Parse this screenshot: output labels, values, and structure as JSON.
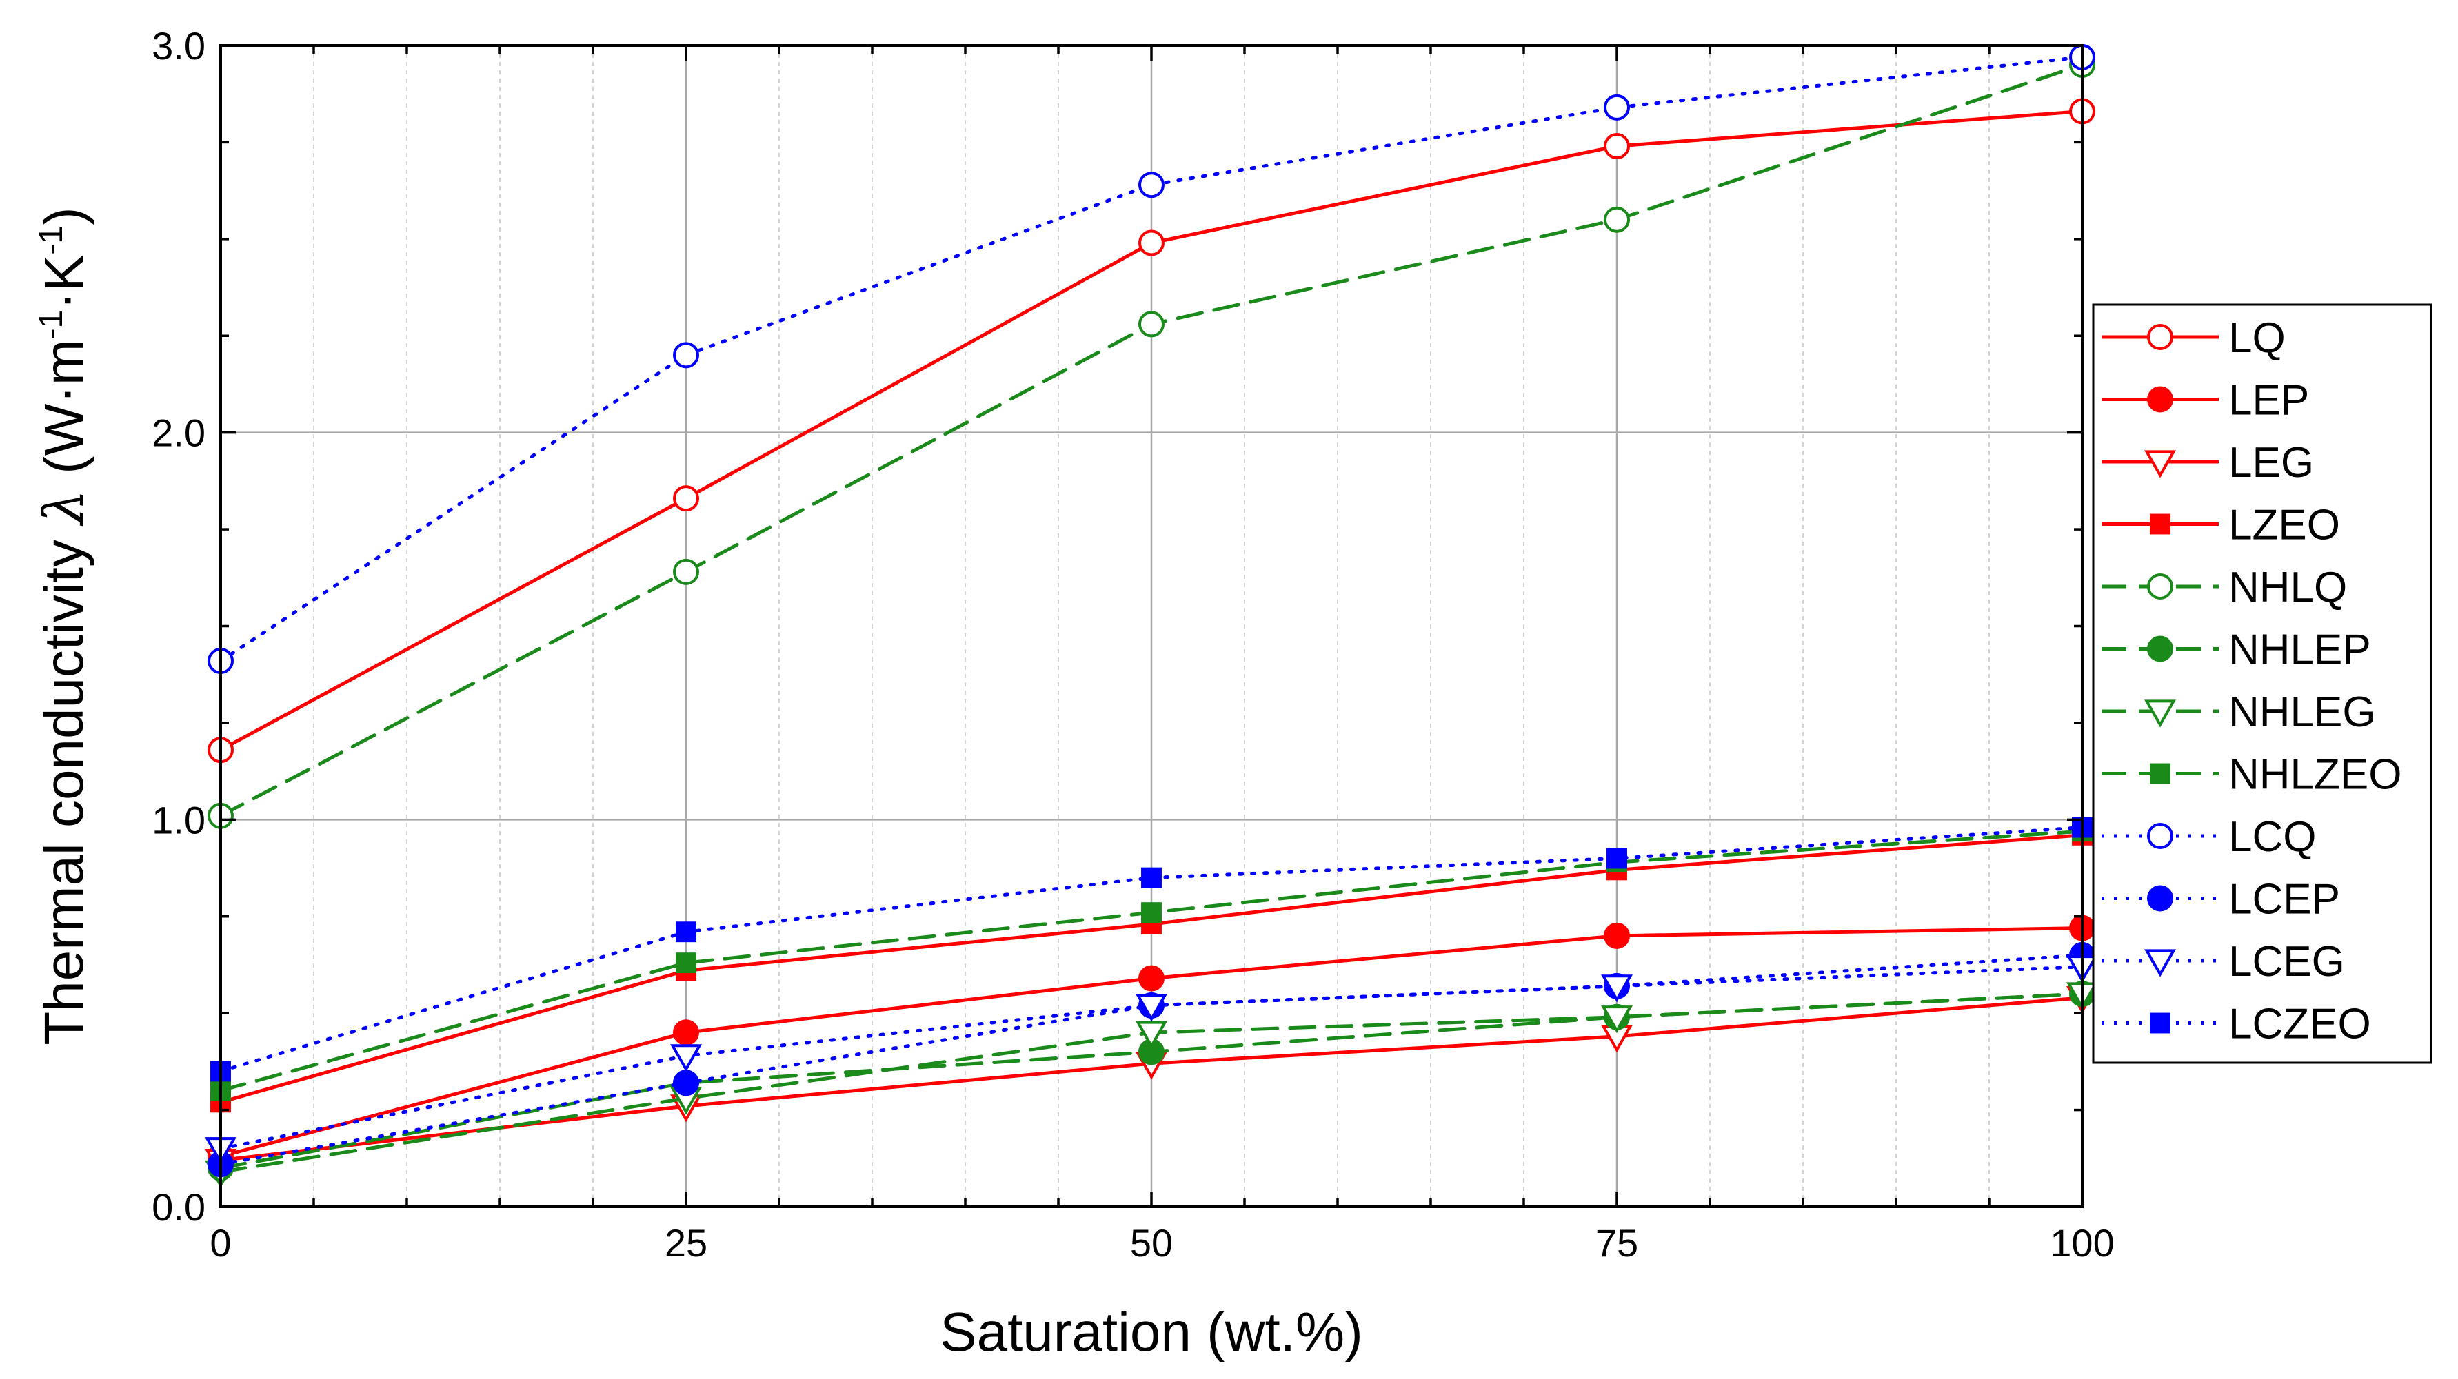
{
  "chart_data": {
    "type": "line",
    "title": "",
    "xlabel": "Saturation (wt.%)",
    "ylabel": {
      "main": "Thermal conductivity ",
      "symbol": "λ",
      "unit_open": " (W·m",
      "exp1": "-1",
      "unit_mid": "·K",
      "exp2": "-1",
      "unit_close": ")"
    },
    "xlim": [
      0,
      100
    ],
    "ylim": [
      0,
      3
    ],
    "x_ticks": [
      0,
      25,
      50,
      75,
      100
    ],
    "x_tick_labels": [
      "0",
      "25",
      "50",
      "75",
      "100"
    ],
    "y_ticks": [
      0,
      1,
      2,
      3
    ],
    "y_tick_labels": [
      "0.0",
      "1.0",
      "2.0",
      "3.0"
    ],
    "x_minor_step": 5,
    "y_minor_step": 0.25,
    "grid": true,
    "legend_position": "right",
    "x": [
      0,
      25,
      50,
      75,
      100
    ],
    "series": [
      {
        "name": "LQ",
        "values": [
          1.18,
          1.83,
          2.49,
          2.74,
          2.83
        ],
        "color": "#ff0000",
        "dash": "solid",
        "marker": "circle-open"
      },
      {
        "name": "LEP",
        "values": [
          0.13,
          0.45,
          0.59,
          0.7,
          0.72
        ],
        "color": "#ff0000",
        "dash": "solid",
        "marker": "circle-filled"
      },
      {
        "name": "LEG",
        "values": [
          0.12,
          0.26,
          0.37,
          0.44,
          0.54
        ],
        "color": "#ff0000",
        "dash": "solid",
        "marker": "triangle-down-open"
      },
      {
        "name": "LZEO",
        "values": [
          0.27,
          0.61,
          0.73,
          0.87,
          0.96
        ],
        "color": "#ff0000",
        "dash": "solid",
        "marker": "square-filled"
      },
      {
        "name": "NHLQ",
        "values": [
          1.01,
          1.64,
          2.28,
          2.55,
          2.95
        ],
        "color": "#1a8a1a",
        "dash": "dashed",
        "marker": "circle-open"
      },
      {
        "name": "NHLEP",
        "values": [
          0.1,
          0.32,
          0.4,
          0.49,
          0.55
        ],
        "color": "#1a8a1a",
        "dash": "dashed",
        "marker": "circle-filled"
      },
      {
        "name": "NHLEG",
        "values": [
          0.09,
          0.28,
          0.45,
          0.49,
          0.55
        ],
        "color": "#1a8a1a",
        "dash": "dashed",
        "marker": "triangle-down-open"
      },
      {
        "name": "NHLZEO",
        "values": [
          0.3,
          0.63,
          0.76,
          0.89,
          0.97
        ],
        "color": "#1a8a1a",
        "dash": "dashed",
        "marker": "square-filled"
      },
      {
        "name": "LCQ",
        "values": [
          1.41,
          2.2,
          2.64,
          2.84,
          2.97
        ],
        "color": "#0000ff",
        "dash": "dotted",
        "marker": "circle-open"
      },
      {
        "name": "LCEP",
        "values": [
          0.11,
          0.32,
          0.52,
          0.57,
          0.65
        ],
        "color": "#0000ff",
        "dash": "dotted",
        "marker": "circle-filled"
      },
      {
        "name": "LCEG",
        "values": [
          0.15,
          0.39,
          0.52,
          0.57,
          0.62
        ],
        "color": "#0000ff",
        "dash": "dotted",
        "marker": "triangle-down-open"
      },
      {
        "name": "LCZEO",
        "values": [
          0.35,
          0.71,
          0.85,
          0.9,
          0.98
        ],
        "color": "#0000ff",
        "dash": "dotted",
        "marker": "square-filled"
      }
    ]
  }
}
